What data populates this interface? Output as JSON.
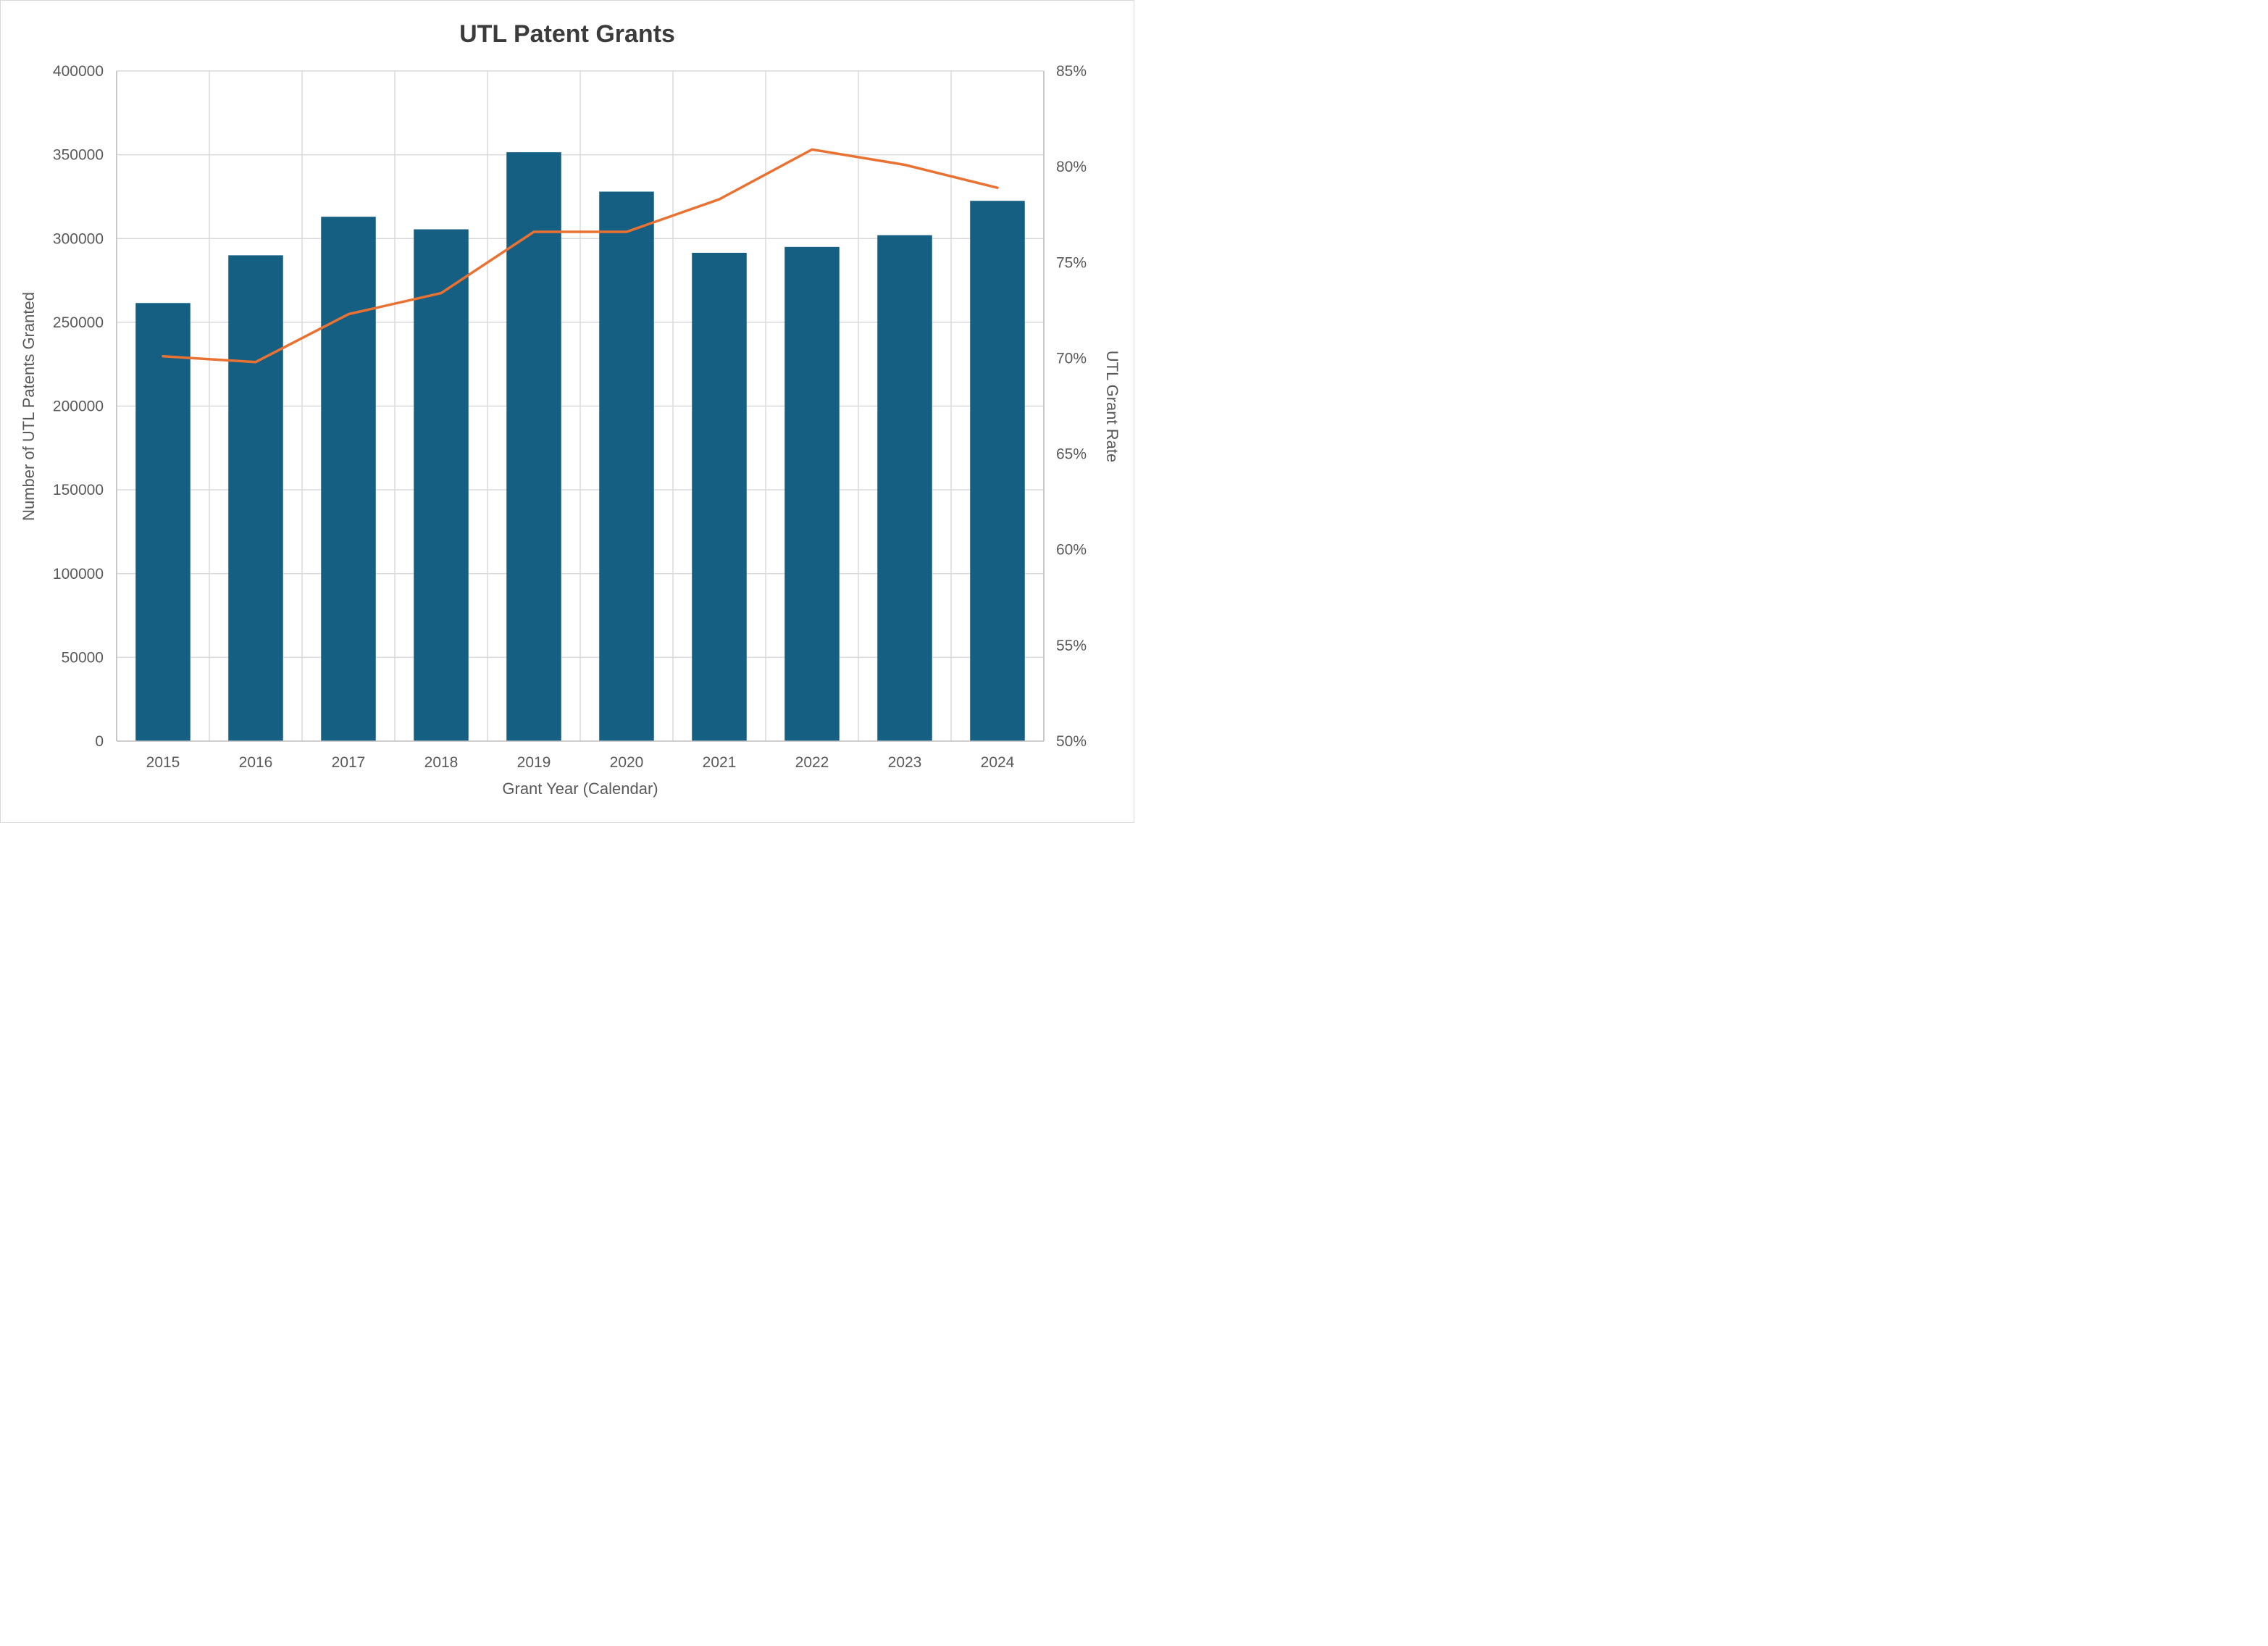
{
  "chart_data": {
    "type": "bar+line",
    "title": "UTL Patent Grants",
    "xlabel": "Grant Year (Calendar)",
    "ylabel": "Number of UTL Patents Granted",
    "y2label": "UTL Grant Rate",
    "categories": [
      "2015",
      "2016",
      "2017",
      "2018",
      "2019",
      "2020",
      "2021",
      "2022",
      "2023",
      "2024"
    ],
    "series": [
      {
        "name": "Number of UTL Patents Granted",
        "type": "bar",
        "axis": "left",
        "color": "#156082",
        "values": [
          261500,
          290000,
          313000,
          305500,
          351500,
          328000,
          291500,
          295000,
          302000,
          322500
        ]
      },
      {
        "name": "UTL Grant Rate",
        "type": "line",
        "axis": "right",
        "color": "#E97132",
        "values": [
          70.1,
          69.8,
          72.3,
          73.4,
          76.6,
          76.6,
          78.3,
          80.9,
          80.1,
          78.9
        ]
      }
    ],
    "ylim": [
      0,
      400000
    ],
    "y_tick_step": 50000,
    "y_tick_labels": [
      "0",
      "50000",
      "100000",
      "150000",
      "200000",
      "250000",
      "300000",
      "350000",
      "400000"
    ],
    "y2lim": [
      50,
      85
    ],
    "y2_tick_step": 5,
    "y2_tick_labels": [
      "50%",
      "55%",
      "60%",
      "65%",
      "70%",
      "75%",
      "80%",
      "85%"
    ],
    "grid": true,
    "legend": "none"
  },
  "colors": {
    "bar": "#156082",
    "line": "#E97132",
    "gridline": "#d9d9d9",
    "axis_line": "#bfbfbf",
    "tick_text": "#595959",
    "title_text": "#3b3b3b"
  }
}
